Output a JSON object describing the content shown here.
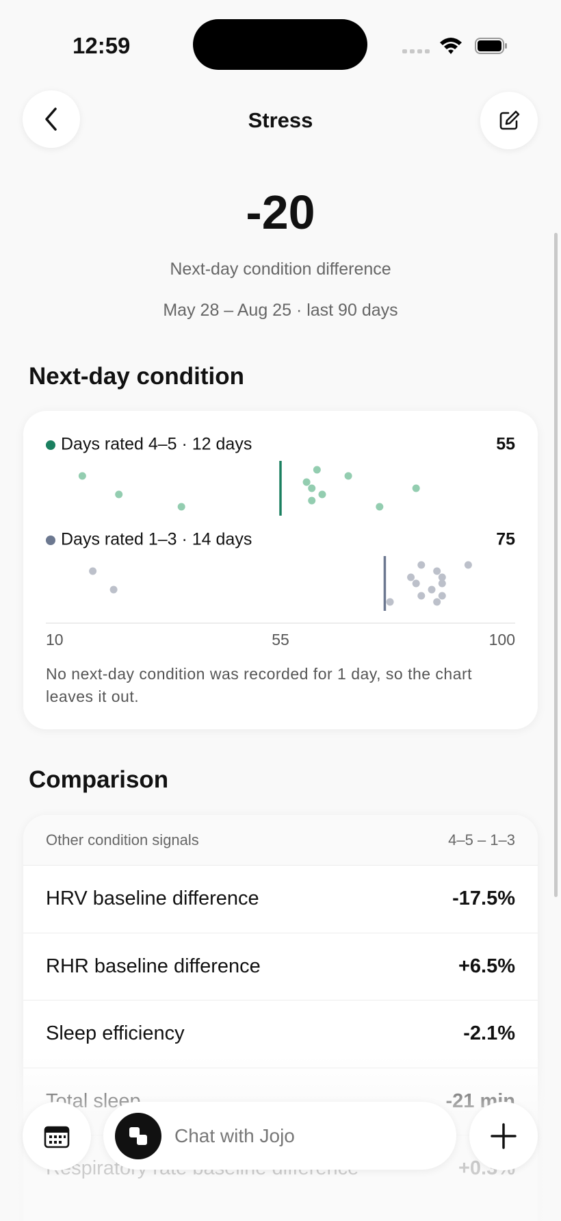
{
  "status_bar": {
    "time": "12:59"
  },
  "header": {
    "title": "Stress"
  },
  "summary": {
    "value": "-20",
    "label": "Next-day condition difference",
    "range": "May 28 – Aug 25 · last 90 days"
  },
  "chart_data": {
    "type": "strip",
    "title": "Next-day condition",
    "series": [
      {
        "name": "Days rated 4–5 · 12 days",
        "color": "#1b8060",
        "point_color": "#93cdb0",
        "mean": 55,
        "values": [
          17,
          24,
          36,
          60,
          61,
          61,
          62,
          63,
          68,
          74,
          81
        ]
      },
      {
        "name": "Days rated 1–3 · 14 days",
        "color": "#6c7890",
        "point_color": "#bcc0ca",
        "mean": 75,
        "values": [
          19,
          23,
          76,
          80,
          81,
          82,
          82,
          84,
          85,
          85,
          86,
          86,
          86,
          91
        ]
      }
    ],
    "xlim": [
      10,
      100
    ],
    "xticks": [
      10,
      55,
      100
    ],
    "note": "No next-day condition was recorded for 1 day, so the chart leaves it out."
  },
  "comparison": {
    "title": "Comparison",
    "header": [
      "Other condition signals",
      "4–5 – 1–3"
    ],
    "rows": [
      [
        "HRV baseline difference",
        "-17.5%"
      ],
      [
        "RHR baseline difference",
        "+6.5%"
      ],
      [
        "Sleep efficiency",
        "-2.1%"
      ],
      [
        "Total sleep",
        "-21 min"
      ],
      [
        "Respiratory rate baseline difference",
        "+0.3%"
      ]
    ]
  },
  "chat": {
    "placeholder": "Chat with Jojo"
  }
}
